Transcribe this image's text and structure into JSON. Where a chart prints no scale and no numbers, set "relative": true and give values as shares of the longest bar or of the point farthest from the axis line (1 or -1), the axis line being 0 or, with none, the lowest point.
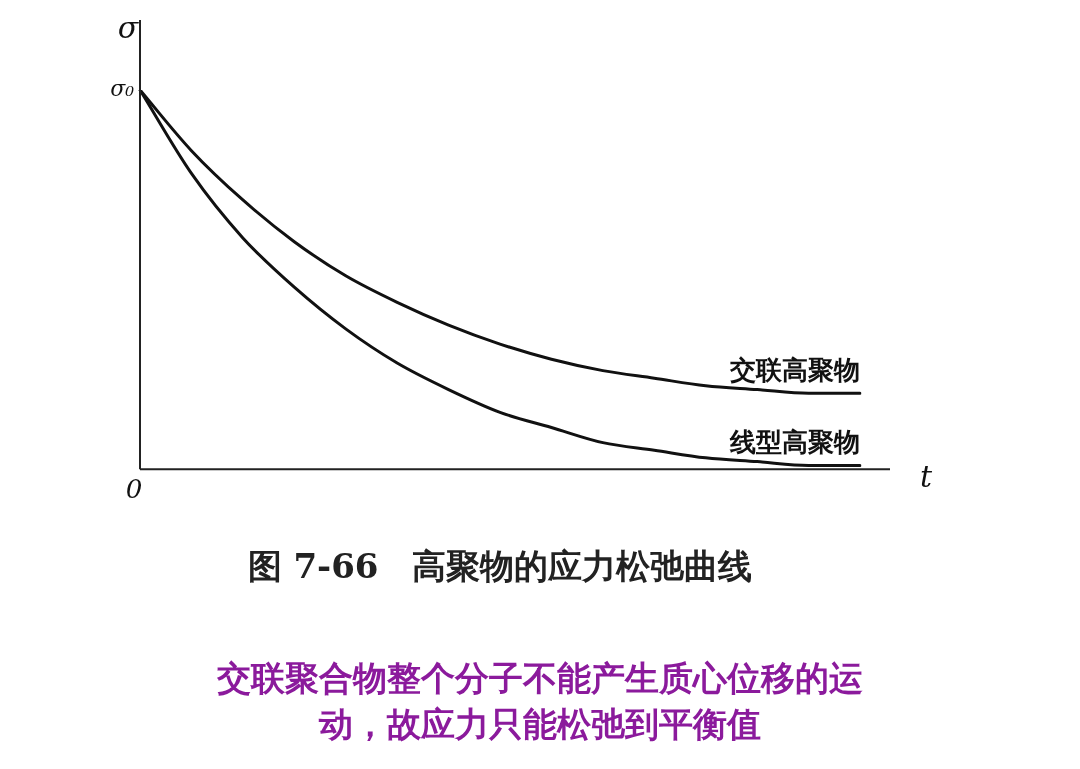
{
  "chart_data": {
    "type": "line",
    "relative": true,
    "title": "图 7-66　高聚物的应力松弛曲线",
    "xlabel": "t",
    "ylabel": "σ",
    "categories": [
      null,
      null,
      null,
      null,
      null,
      null,
      null,
      null,
      null,
      null,
      null,
      null,
      null,
      null,
      null
    ],
    "series": [
      {
        "name": "交联高聚物",
        "color": "#111111",
        "values": [
          1,
          0.84,
          0.71,
          0.6,
          0.51,
          0.44,
          0.38,
          0.33,
          0.29,
          0.26,
          0.24,
          0.22,
          0.21,
          0.2,
          0.2
        ]
      },
      {
        "name": "线型高聚物",
        "color": "#111111",
        "values": [
          1,
          0.78,
          0.61,
          0.48,
          0.37,
          0.28,
          0.21,
          0.15,
          0.11,
          0.07,
          0.05,
          0.03,
          0.02,
          0.01,
          0.01
        ]
      }
    ],
    "annotations": [
      "σ₀",
      "0",
      "交联聚合物整个分子不能产生质心位移的运动，故应力只能松弛到平衡值"
    ],
    "legend": false,
    "marker": "none",
    "line_style": "solid"
  }
}
